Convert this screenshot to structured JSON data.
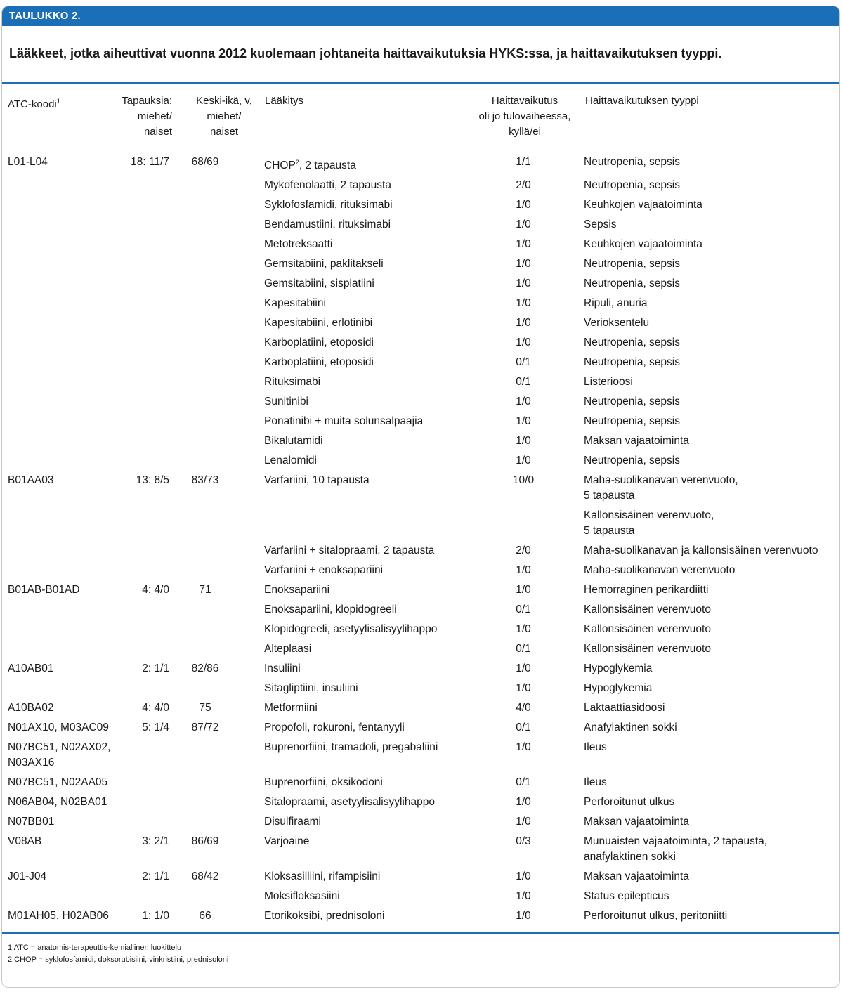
{
  "title_bar": "TAULUKKO 2.",
  "caption": "Lääkkeet, jotka aiheuttivat vuonna 2012 kuolemaan johtaneita haittavaikutuksia HYKS:ssa, ja haittavaikutuksen tyyppi.",
  "headers": {
    "atc": "ATC-koodi",
    "atc_sup": "1",
    "cases": "Tapauksia:\nmiehet/\nnaiset",
    "age": "Keski-ikä, v,\nmiehet/\nnaiset",
    "drug": "Lääkitys",
    "at_admission": "Haittavaikutus\noli jo tulovaiheessa,\nkyllä/ei",
    "type": "Haittavaikutuksen tyyppi"
  },
  "rows": [
    {
      "atc": "L01-L04",
      "cases": "18: 11/7",
      "age": "68/69",
      "drug": "CHOP",
      "drug_sup": "2",
      "drug_tail": ", 2 tapausta",
      "adm": "1/1",
      "type": "Neutropenia, sepsis"
    },
    {
      "atc": "",
      "cases": "",
      "age": "",
      "drug": "Mykofenolaatti, 2 tapausta",
      "adm": "2/0",
      "type": "Neutropenia, sepsis"
    },
    {
      "atc": "",
      "cases": "",
      "age": "",
      "drug": "Syklofosfamidi, rituksimabi",
      "adm": "1/0",
      "type": "Keuhkojen vajaatoiminta"
    },
    {
      "atc": "",
      "cases": "",
      "age": "",
      "drug": "Bendamustiini, rituksimabi",
      "adm": "1/0",
      "type": "Sepsis"
    },
    {
      "atc": "",
      "cases": "",
      "age": "",
      "drug": "Metotreksaatti",
      "adm": "1/0",
      "type": "Keuhkojen vajaatoiminta"
    },
    {
      "atc": "",
      "cases": "",
      "age": "",
      "drug": "Gemsitabiini, paklitakseli",
      "adm": "1/0",
      "type": "Neutropenia, sepsis"
    },
    {
      "atc": "",
      "cases": "",
      "age": "",
      "drug": "Gemsitabiini, sisplatiini",
      "adm": "1/0",
      "type": "Neutropenia, sepsis"
    },
    {
      "atc": "",
      "cases": "",
      "age": "",
      "drug": "Kapesitabiini",
      "adm": "1/0",
      "type": "Ripuli, anuria"
    },
    {
      "atc": "",
      "cases": "",
      "age": "",
      "drug": "Kapesitabiini, erlotinibi",
      "adm": "1/0",
      "type": "Verioksentelu"
    },
    {
      "atc": "",
      "cases": "",
      "age": "",
      "drug": "Karboplatiini, etoposidi",
      "adm": "1/0",
      "type": "Neutropenia, sepsis"
    },
    {
      "atc": "",
      "cases": "",
      "age": "",
      "drug": "Karboplatiini, etoposidi",
      "adm": "0/1",
      "type": "Neutropenia, sepsis"
    },
    {
      "atc": "",
      "cases": "",
      "age": "",
      "drug": "Rituksimabi",
      "adm": "0/1",
      "type": "Listerioosi"
    },
    {
      "atc": "",
      "cases": "",
      "age": "",
      "drug": "Sunitinibi",
      "adm": "1/0",
      "type": "Neutropenia, sepsis"
    },
    {
      "atc": "",
      "cases": "",
      "age": "",
      "drug": "Ponatinibi + muita solunsalpaajia",
      "adm": "1/0",
      "type": "Neutropenia, sepsis"
    },
    {
      "atc": "",
      "cases": "",
      "age": "",
      "drug": "Bikalutamidi",
      "adm": "1/0",
      "type": "Maksan vajaatoiminta"
    },
    {
      "atc": "",
      "cases": "",
      "age": "",
      "drug": "Lenalomidi",
      "adm": "1/0",
      "type": "Neutropenia, sepsis"
    },
    {
      "atc": "B01AA03",
      "cases": "13: 8/5",
      "age": "83/73",
      "drug": "Varfariini, 10 tapausta",
      "adm": "10/0",
      "type": "Maha-suolikanavan verenvuoto,\n5 tapausta"
    },
    {
      "atc": "",
      "cases": "",
      "age": "",
      "drug": "",
      "adm": "",
      "type": "Kallonsisäinen verenvuoto,\n5 tapausta"
    },
    {
      "atc": "",
      "cases": "",
      "age": "",
      "drug": "Varfariini + sitalopraami, 2 tapausta",
      "adm": "2/0",
      "type": "Maha-suolikanavan ja kallonsisäinen verenvuoto"
    },
    {
      "atc": "",
      "cases": "",
      "age": "",
      "drug": "Varfariini + enoksapariini",
      "adm": "1/0",
      "type": "Maha-suolikanavan verenvuoto"
    },
    {
      "atc": "B01AB-B01AD",
      "cases": "4: 4/0",
      "age": "71",
      "drug": "Enoksapariini",
      "adm": "1/0",
      "type": "Hemorraginen perikardiitti"
    },
    {
      "atc": "",
      "cases": "",
      "age": "",
      "drug": "Enoksapariini, klopidogreeli",
      "adm": "0/1",
      "type": "Kallonsisäinen verenvuoto"
    },
    {
      "atc": "",
      "cases": "",
      "age": "",
      "drug": "Klopidogreeli, asetyylisalisyylihappo",
      "adm": "1/0",
      "type": "Kallonsisäinen verenvuoto"
    },
    {
      "atc": "",
      "cases": "",
      "age": "",
      "drug": "Alteplaasi",
      "adm": "0/1",
      "type": "Kallonsisäinen verenvuoto"
    },
    {
      "atc": "A10AB01",
      "cases": "2: 1/1",
      "age": "82/86",
      "drug": "Insuliini",
      "adm": "1/0",
      "type": "Hypoglykemia"
    },
    {
      "atc": "",
      "cases": "",
      "age": "",
      "drug": "Sitagliptiini, insuliini",
      "adm": "1/0",
      "type": "Hypoglykemia"
    },
    {
      "atc": "A10BA02",
      "cases": "4: 4/0",
      "age": "75",
      "drug": "Metformiini",
      "adm": "4/0",
      "type": "Laktaattiasidoosi"
    },
    {
      "atc": "N01AX10, M03AC09",
      "cases": "5: 1/4",
      "age": "87/72",
      "drug": "Propofoli, rokuroni, fentanyyli",
      "adm": "0/1",
      "type": "Anafylaktinen sokki"
    },
    {
      "atc": "N07BC51, N02AX02,\nN03AX16",
      "cases": "",
      "age": "",
      "drug": "Buprenorfiini, tramadoli, pregabaliini",
      "adm": "1/0",
      "type": "Ileus"
    },
    {
      "atc": "N07BC51, N02AA05",
      "cases": "",
      "age": "",
      "drug": "Buprenorfiini, oksikodoni",
      "adm": "0/1",
      "type": "Ileus"
    },
    {
      "atc": "N06AB04, N02BA01",
      "cases": "",
      "age": "",
      "drug": "Sitalopraami, asetyylisalisyylihappo",
      "adm": "1/0",
      "type": "Perforoitunut ulkus"
    },
    {
      "atc": "N07BB01",
      "cases": "",
      "age": "",
      "drug": "Disulfiraami",
      "adm": "1/0",
      "type": "Maksan vajaatoiminta"
    },
    {
      "atc": "V08AB",
      "cases": "3: 2/1",
      "age": "86/69",
      "drug": "Varjoaine",
      "adm": "0/3",
      "type": "Munuaisten vajaatoiminta, 2 tapausta,\nanafylaktinen sokki"
    },
    {
      "atc": "J01-J04",
      "cases": "2: 1/1",
      "age": "68/42",
      "drug": "Kloksasilliini, rifampisiini",
      "adm": "1/0",
      "type": "Maksan vajaatoiminta"
    },
    {
      "atc": "",
      "cases": "",
      "age": "",
      "drug": "Moksifloksasiini",
      "adm": "1/0",
      "type": "Status epilepticus"
    },
    {
      "atc": "M01AH05, H02AB06",
      "cases": "1: 1/0",
      "age": "66",
      "drug": "Etorikoksibi, prednisoloni",
      "adm": "1/0",
      "type": "Perforoitunut ulkus, peritoniitti"
    }
  ],
  "footnotes": [
    "1 ATC = anatomis-terapeuttis-kemiallinen luokittelu",
    "2 CHOP = syklofosfamidi, doksorubisiini, vinkristiini, prednisoloni"
  ]
}
